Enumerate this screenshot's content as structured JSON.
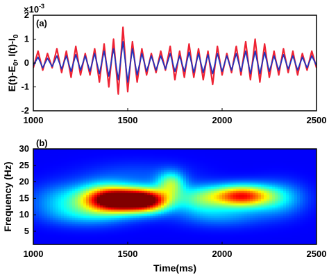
{
  "chart_data": [
    {
      "panel_label": "(a)",
      "type": "line",
      "ylabel": "E(t)-E₀, I(t)-I₀",
      "ylabel_parts": [
        "E(t)-E",
        "0",
        ", I(t)-I",
        "0"
      ],
      "y_exponent_base": "×10",
      "y_exponent_power": "-3",
      "xlim": [
        1000,
        2500
      ],
      "ylim": [
        -2,
        2
      ],
      "x_ticks": [
        "1000",
        "1500",
        "2000",
        "2500"
      ],
      "y_ticks": [
        "-2",
        "-1",
        "0",
        "1",
        "2"
      ],
      "x_tick_values": [
        1000,
        1500,
        2000,
        2500
      ],
      "y_tick_values": [
        -2,
        -1,
        0,
        1,
        2
      ],
      "series": [
        {
          "color": "#ee2233",
          "x": [
            1000,
            1025,
            1050,
            1075,
            1100,
            1125,
            1150,
            1175,
            1200,
            1225,
            1250,
            1275,
            1300,
            1325,
            1350,
            1375,
            1400,
            1425,
            1450,
            1475,
            1500,
            1525,
            1550,
            1575,
            1600,
            1625,
            1650,
            1675,
            1700,
            1725,
            1750,
            1775,
            1800,
            1825,
            1850,
            1875,
            1900,
            1925,
            1950,
            1975,
            2000,
            2025,
            2050,
            2075,
            2100,
            2125,
            2150,
            2175,
            2200,
            2225,
            2250,
            2275,
            2300,
            2325,
            2350,
            2375,
            2400,
            2425,
            2450,
            2475,
            2500
          ],
          "values": [
            -0.2,
            0.5,
            -0.3,
            0.4,
            -0.2,
            0.6,
            -0.4,
            0.5,
            -0.6,
            0.7,
            -0.5,
            0.4,
            -0.5,
            0.6,
            -0.8,
            0.8,
            -1.0,
            1.0,
            -1.3,
            1.5,
            -1.2,
            0.9,
            -0.8,
            0.6,
            -0.5,
            0.4,
            -0.4,
            0.5,
            -0.3,
            0.7,
            -0.7,
            0.5,
            -0.6,
            0.8,
            -0.6,
            0.6,
            -0.7,
            0.5,
            -0.9,
            0.7,
            -0.5,
            0.4,
            -0.4,
            0.7,
            -0.5,
            0.9,
            -0.7,
            1.0,
            -0.8,
            0.8,
            -0.6,
            0.5,
            -0.5,
            0.6,
            -0.4,
            0.5,
            -0.5,
            0.4,
            -0.3,
            0.5,
            -0.2
          ]
        },
        {
          "color": "#2233bb",
          "x": [
            1000,
            1025,
            1050,
            1075,
            1100,
            1125,
            1150,
            1175,
            1200,
            1225,
            1250,
            1275,
            1300,
            1325,
            1350,
            1375,
            1400,
            1425,
            1450,
            1475,
            1500,
            1525,
            1550,
            1575,
            1600,
            1625,
            1650,
            1675,
            1700,
            1725,
            1750,
            1775,
            1800,
            1825,
            1850,
            1875,
            1900,
            1925,
            1950,
            1975,
            2000,
            2025,
            2050,
            2075,
            2100,
            2125,
            2150,
            2175,
            2200,
            2225,
            2250,
            2275,
            2300,
            2325,
            2350,
            2375,
            2400,
            2425,
            2450,
            2475,
            2500
          ],
          "values": [
            -0.1,
            0.25,
            -0.2,
            0.2,
            -0.15,
            0.3,
            -0.25,
            0.3,
            -0.35,
            0.35,
            -0.3,
            0.3,
            -0.35,
            0.4,
            -0.45,
            0.5,
            -0.55,
            0.6,
            -0.7,
            0.9,
            -0.8,
            0.6,
            -0.5,
            0.4,
            -0.35,
            0.3,
            -0.3,
            0.3,
            -0.25,
            0.4,
            -0.35,
            0.3,
            -0.35,
            0.45,
            -0.4,
            0.4,
            -0.4,
            0.35,
            -0.45,
            0.4,
            -0.35,
            0.3,
            -0.3,
            0.4,
            -0.35,
            0.5,
            -0.45,
            0.5,
            -0.45,
            0.45,
            -0.35,
            0.3,
            -0.3,
            0.35,
            -0.25,
            0.3,
            -0.3,
            0.25,
            -0.2,
            0.3,
            -0.1
          ]
        }
      ]
    },
    {
      "panel_label": "(b)",
      "type": "heatmap",
      "xlabel": "Time(ms)",
      "ylabel": "Frequency (Hz)",
      "xlim": [
        1000,
        2500
      ],
      "ylim": [
        1,
        30
      ],
      "x_ticks": [
        "1000",
        "1500",
        "2000",
        "2500"
      ],
      "y_ticks": [
        "5",
        "10",
        "15",
        "20",
        "25",
        "30"
      ],
      "x_tick_values": [
        1000,
        1500,
        2000,
        2500
      ],
      "y_tick_values": [
        5,
        10,
        15,
        20,
        25,
        30
      ],
      "colormap": "jet",
      "blobs": [
        {
          "t": 1500,
          "f": 14.5,
          "st": 120,
          "sf": 2.4,
          "amp": 1.0
        },
        {
          "t": 1380,
          "f": 15.5,
          "st": 90,
          "sf": 3.0,
          "amp": 0.35
        },
        {
          "t": 1620,
          "f": 14.5,
          "st": 80,
          "sf": 2.5,
          "amp": 0.4
        },
        {
          "t": 2100,
          "f": 15.8,
          "st": 110,
          "sf": 2.3,
          "amp": 0.72
        },
        {
          "t": 1730,
          "f": 19.5,
          "st": 50,
          "sf": 2.5,
          "amp": 0.35
        },
        {
          "t": 1880,
          "f": 15.0,
          "st": 90,
          "sf": 2.8,
          "amp": 0.28
        },
        {
          "t": 1200,
          "f": 14.5,
          "st": 140,
          "sf": 3.5,
          "amp": 0.22
        },
        {
          "t": 2300,
          "f": 15.0,
          "st": 100,
          "sf": 3.5,
          "amp": 0.2
        },
        {
          "t": 1300,
          "f": 10.0,
          "st": 160,
          "sf": 2.5,
          "amp": 0.15
        },
        {
          "t": 2000,
          "f": 10.0,
          "st": 160,
          "sf": 2.5,
          "amp": 0.15
        },
        {
          "t": 1550,
          "f": 22.0,
          "st": 200,
          "sf": 3.0,
          "amp": 0.08
        }
      ]
    }
  ]
}
